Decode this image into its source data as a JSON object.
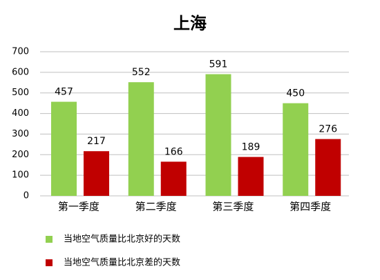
{
  "chart_data": {
    "type": "bar",
    "title": "上海",
    "categories": [
      "第一季度",
      "第二季度",
      "第三季度",
      "第四季度"
    ],
    "series": [
      {
        "name": "当地空气质量比北京好的天数",
        "color": "#92d050",
        "values": [
          457,
          552,
          591,
          450
        ]
      },
      {
        "name": "当地空气质量比北京差的天数",
        "color": "#c00000",
        "values": [
          217,
          166,
          189,
          276
        ]
      }
    ],
    "ylim": [
      0,
      700
    ],
    "yticks": [
      0,
      100,
      200,
      300,
      400,
      500,
      600,
      700
    ],
    "grid": true,
    "legend": "bottom"
  }
}
